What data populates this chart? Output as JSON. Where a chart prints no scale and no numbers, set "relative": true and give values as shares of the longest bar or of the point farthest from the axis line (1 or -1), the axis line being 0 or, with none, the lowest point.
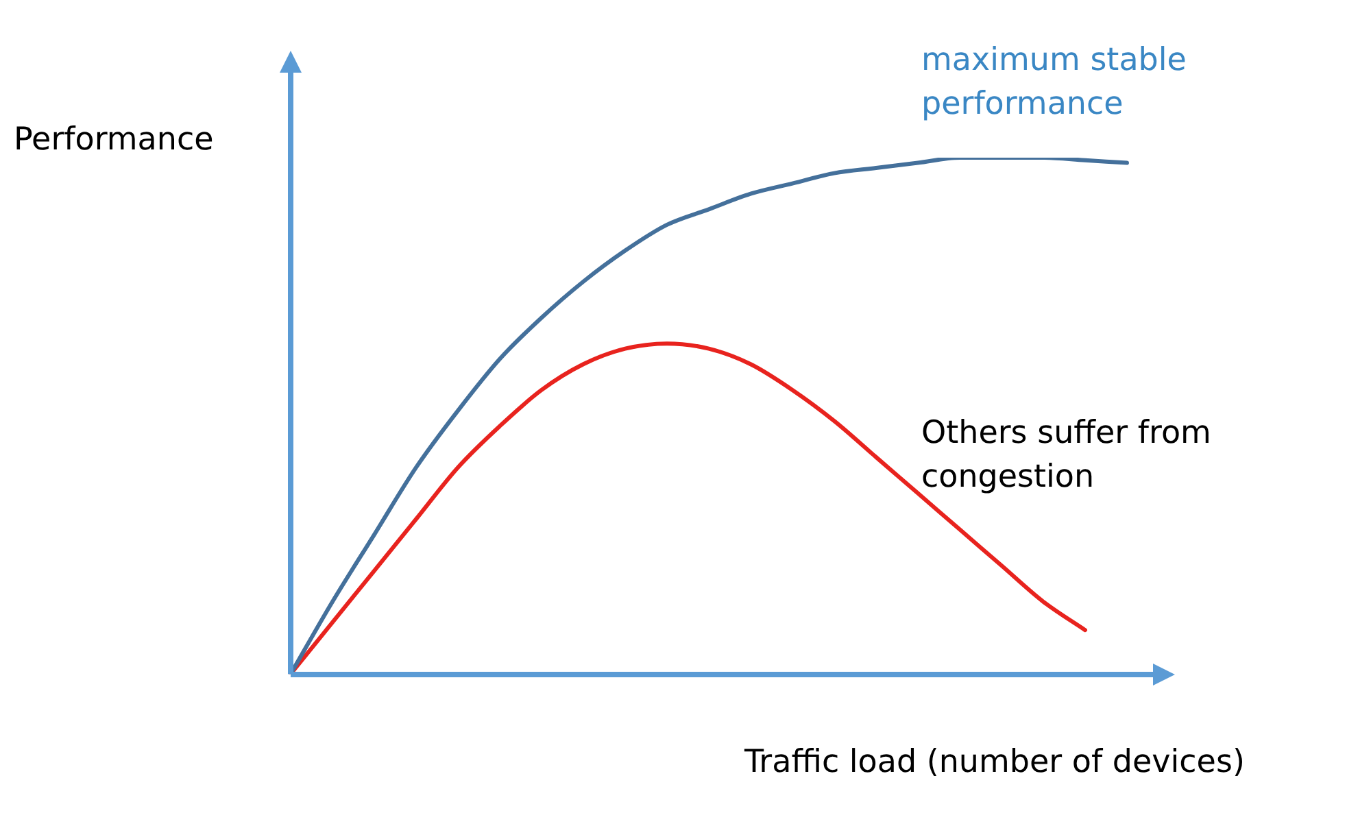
{
  "chart_data": {
    "type": "line",
    "relative": true,
    "ylabel": "Performance",
    "xlabel": "Traffic load (number of devices)",
    "legend": false,
    "grid": false,
    "marker": "none",
    "line_style": "solid",
    "categories": [
      null,
      null,
      null,
      null,
      null,
      null,
      null,
      null,
      null,
      null,
      null,
      null,
      null,
      null,
      null,
      null,
      null,
      null,
      null,
      null,
      null
    ],
    "series": [
      {
        "name": "maximum stable performance",
        "color": "#44709b",
        "values": [
          0,
          0.14,
          0.27,
          0.4,
          0.51,
          0.61,
          0.69,
          0.76,
          0.82,
          0.87,
          0.9,
          0.93,
          0.95,
          0.97,
          0.98,
          0.99,
          1,
          1,
          1,
          0.995,
          0.99
        ]
      },
      {
        "name": "Others suffer from congestion",
        "color": "#e8231e",
        "values": [
          0,
          0.1,
          0.2,
          0.3,
          0.4,
          0.48,
          0.55,
          0.6,
          0.63,
          0.64,
          0.63,
          0.6,
          0.55,
          0.49,
          0.42,
          0.35,
          0.28,
          0.21,
          0.14,
          0.085,
          null
        ]
      }
    ]
  }
}
